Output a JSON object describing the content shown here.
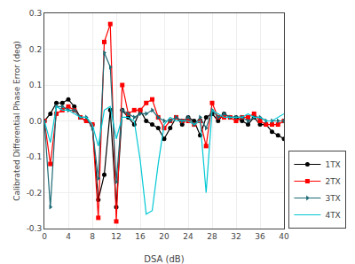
{
  "chart_data": {
    "type": "line",
    "xlabel": "DSA (dB)",
    "ylabel": "Calibrated Differential Phase Error (deg)",
    "x": [
      0,
      1,
      2,
      3,
      4,
      5,
      6,
      7,
      8,
      9,
      10,
      11,
      12,
      13,
      14,
      15,
      16,
      17,
      18,
      19,
      20,
      21,
      22,
      23,
      24,
      25,
      26,
      27,
      28,
      29,
      30,
      31,
      32,
      33,
      34,
      35,
      36,
      37,
      38,
      39,
      40
    ],
    "series": [
      {
        "name": "1TX",
        "color": "#000000",
        "marker": "circle",
        "values": [
          0.0,
          0.02,
          0.05,
          0.05,
          0.06,
          0.04,
          0.01,
          0.0,
          -0.01,
          -0.22,
          -0.15,
          0.03,
          -0.24,
          0.03,
          0.01,
          -0.01,
          0.03,
          0.0,
          -0.01,
          -0.02,
          -0.05,
          -0.02,
          0.01,
          -0.01,
          0.01,
          0.0,
          -0.04,
          0.01,
          0.02,
          0.0,
          0.02,
          0.01,
          0.01,
          0.0,
          -0.01,
          0.01,
          -0.01,
          -0.01,
          -0.03,
          -0.04,
          -0.05
        ]
      },
      {
        "name": "2TX",
        "color": "#ff0000",
        "marker": "square",
        "values": [
          0.0,
          -0.12,
          0.02,
          0.03,
          0.04,
          0.03,
          0.01,
          0.0,
          -0.01,
          -0.27,
          0.22,
          0.27,
          -0.28,
          0.1,
          0.02,
          0.03,
          0.03,
          0.05,
          0.06,
          0.01,
          -0.02,
          0.0,
          0.01,
          0.0,
          0.0,
          -0.01,
          0.0,
          -0.07,
          0.05,
          0.01,
          0.01,
          0.01,
          0.0,
          0.01,
          0.01,
          0.02,
          0.0,
          -0.01,
          -0.01,
          -0.01,
          0.0
        ]
      },
      {
        "name": "3TX",
        "color": "#1f6b75",
        "marker": "triangle-right",
        "values": [
          0.0,
          -0.24,
          0.04,
          0.04,
          0.03,
          0.03,
          0.01,
          0.01,
          -0.02,
          -0.16,
          0.19,
          0.15,
          -0.17,
          0.03,
          0.02,
          0.01,
          0.02,
          0.02,
          0.03,
          0.01,
          0.0,
          0.0,
          0.01,
          0.0,
          0.01,
          -0.01,
          0.01,
          -0.02,
          0.03,
          0.01,
          0.02,
          0.01,
          0.01,
          0.01,
          0.0,
          0.01,
          0.01,
          0.0,
          0.0,
          0.0,
          0.0
        ]
      },
      {
        "name": "4TX",
        "color": "#00c8d4",
        "marker": "none",
        "values": [
          0.0,
          -0.06,
          0.04,
          0.03,
          0.03,
          0.02,
          0.01,
          0.01,
          -0.01,
          -0.07,
          0.03,
          0.04,
          -0.05,
          0.01,
          0.01,
          0.0,
          -0.11,
          -0.26,
          -0.25,
          -0.12,
          -0.01,
          0.01,
          0.0,
          0.0,
          0.0,
          -0.01,
          0.0,
          -0.2,
          0.03,
          0.02,
          0.01,
          0.01,
          0.01,
          0.01,
          0.02,
          0.01,
          0.01,
          0.0,
          0.0,
          0.01,
          0.02
        ]
      }
    ],
    "xlim": [
      0,
      40
    ],
    "ylim": [
      -0.3,
      0.3
    ],
    "xticks": [
      0,
      4,
      8,
      12,
      16,
      20,
      24,
      28,
      32,
      36,
      40
    ],
    "yticks": [
      -0.3,
      -0.2,
      -0.1,
      {
        "value": 0,
        "label": "0.0"
      },
      0.1,
      0.2,
      0.3
    ],
    "grid": true,
    "legend": "lower right"
  }
}
